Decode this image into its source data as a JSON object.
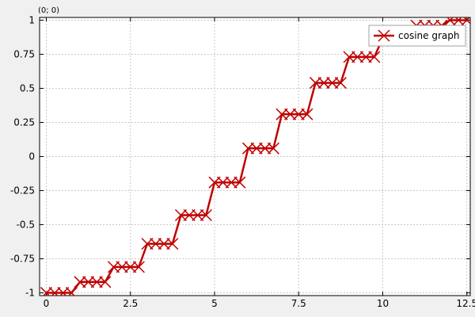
{
  "coordinate_readout": "(0; 0)",
  "colors": {
    "background": "#f0f0f0",
    "plot_background": "#ffffff",
    "series": "#c00000",
    "grid": "#c8c8c8",
    "axis": "#000000"
  },
  "chart_data": {
    "type": "line",
    "title": "",
    "xlabel": "",
    "ylabel": "",
    "xlim": [
      -0.2,
      12.6
    ],
    "ylim": [
      -1.02,
      1.02
    ],
    "grid": true,
    "legend_position": "top-right",
    "x_ticks": [
      {
        "value": 0,
        "label": "0"
      },
      {
        "value": 2.5,
        "label": "2.5"
      },
      {
        "value": 5,
        "label": "5"
      },
      {
        "value": 7.5,
        "label": "7.5"
      },
      {
        "value": 10,
        "label": "10"
      },
      {
        "value": 12.5,
        "label": "12.5"
      }
    ],
    "y_ticks": [
      {
        "value": 1,
        "label": "1"
      },
      {
        "value": 0.75,
        "label": "0.75"
      },
      {
        "value": 0.5,
        "label": "0.5"
      },
      {
        "value": 0.25,
        "label": "0.25"
      },
      {
        "value": 0,
        "label": "0"
      },
      {
        "value": -0.25,
        "label": "-0.25"
      },
      {
        "value": -0.5,
        "label": "-0.5"
      },
      {
        "value": -0.75,
        "label": "-0.75"
      },
      {
        "value": -1,
        "label": "-1"
      }
    ],
    "series": [
      {
        "name": "cosine graph",
        "color": "#c00000",
        "marker": "x",
        "points": [
          {
            "x": 0.0,
            "y": -1.0
          },
          {
            "x": 0.25,
            "y": -1.0
          },
          {
            "x": 0.5,
            "y": -1.0
          },
          {
            "x": 0.75,
            "y": -1.0
          },
          {
            "x": 1.0,
            "y": -0.92
          },
          {
            "x": 1.25,
            "y": -0.92
          },
          {
            "x": 1.5,
            "y": -0.92
          },
          {
            "x": 1.75,
            "y": -0.92
          },
          {
            "x": 2.0,
            "y": -0.81
          },
          {
            "x": 2.25,
            "y": -0.81
          },
          {
            "x": 2.5,
            "y": -0.81
          },
          {
            "x": 2.75,
            "y": -0.81
          },
          {
            "x": 3.0,
            "y": -0.64
          },
          {
            "x": 3.25,
            "y": -0.64
          },
          {
            "x": 3.5,
            "y": -0.64
          },
          {
            "x": 3.75,
            "y": -0.64
          },
          {
            "x": 4.0,
            "y": -0.43
          },
          {
            "x": 4.25,
            "y": -0.43
          },
          {
            "x": 4.5,
            "y": -0.43
          },
          {
            "x": 4.75,
            "y": -0.43
          },
          {
            "x": 5.0,
            "y": -0.19
          },
          {
            "x": 5.25,
            "y": -0.19
          },
          {
            "x": 5.5,
            "y": -0.19
          },
          {
            "x": 5.75,
            "y": -0.19
          },
          {
            "x": 6.0,
            "y": 0.06
          },
          {
            "x": 6.25,
            "y": 0.06
          },
          {
            "x": 6.5,
            "y": 0.06
          },
          {
            "x": 6.75,
            "y": 0.06
          },
          {
            "x": 7.0,
            "y": 0.31
          },
          {
            "x": 7.25,
            "y": 0.31
          },
          {
            "x": 7.5,
            "y": 0.31
          },
          {
            "x": 7.75,
            "y": 0.31
          },
          {
            "x": 8.0,
            "y": 0.54
          },
          {
            "x": 8.25,
            "y": 0.54
          },
          {
            "x": 8.5,
            "y": 0.54
          },
          {
            "x": 8.75,
            "y": 0.54
          },
          {
            "x": 9.0,
            "y": 0.73
          },
          {
            "x": 9.25,
            "y": 0.73
          },
          {
            "x": 9.5,
            "y": 0.73
          },
          {
            "x": 9.75,
            "y": 0.73
          },
          {
            "x": 10.0,
            "y": 0.87
          },
          {
            "x": 10.25,
            "y": 0.87
          },
          {
            "x": 10.5,
            "y": 0.87
          },
          {
            "x": 10.75,
            "y": 0.87
          },
          {
            "x": 11.0,
            "y": 0.96
          },
          {
            "x": 11.25,
            "y": 0.96
          },
          {
            "x": 11.5,
            "y": 0.96
          },
          {
            "x": 11.75,
            "y": 0.96
          },
          {
            "x": 12.0,
            "y": 1.0
          },
          {
            "x": 12.25,
            "y": 1.0
          },
          {
            "x": 12.5,
            "y": 1.0
          }
        ]
      }
    ]
  }
}
